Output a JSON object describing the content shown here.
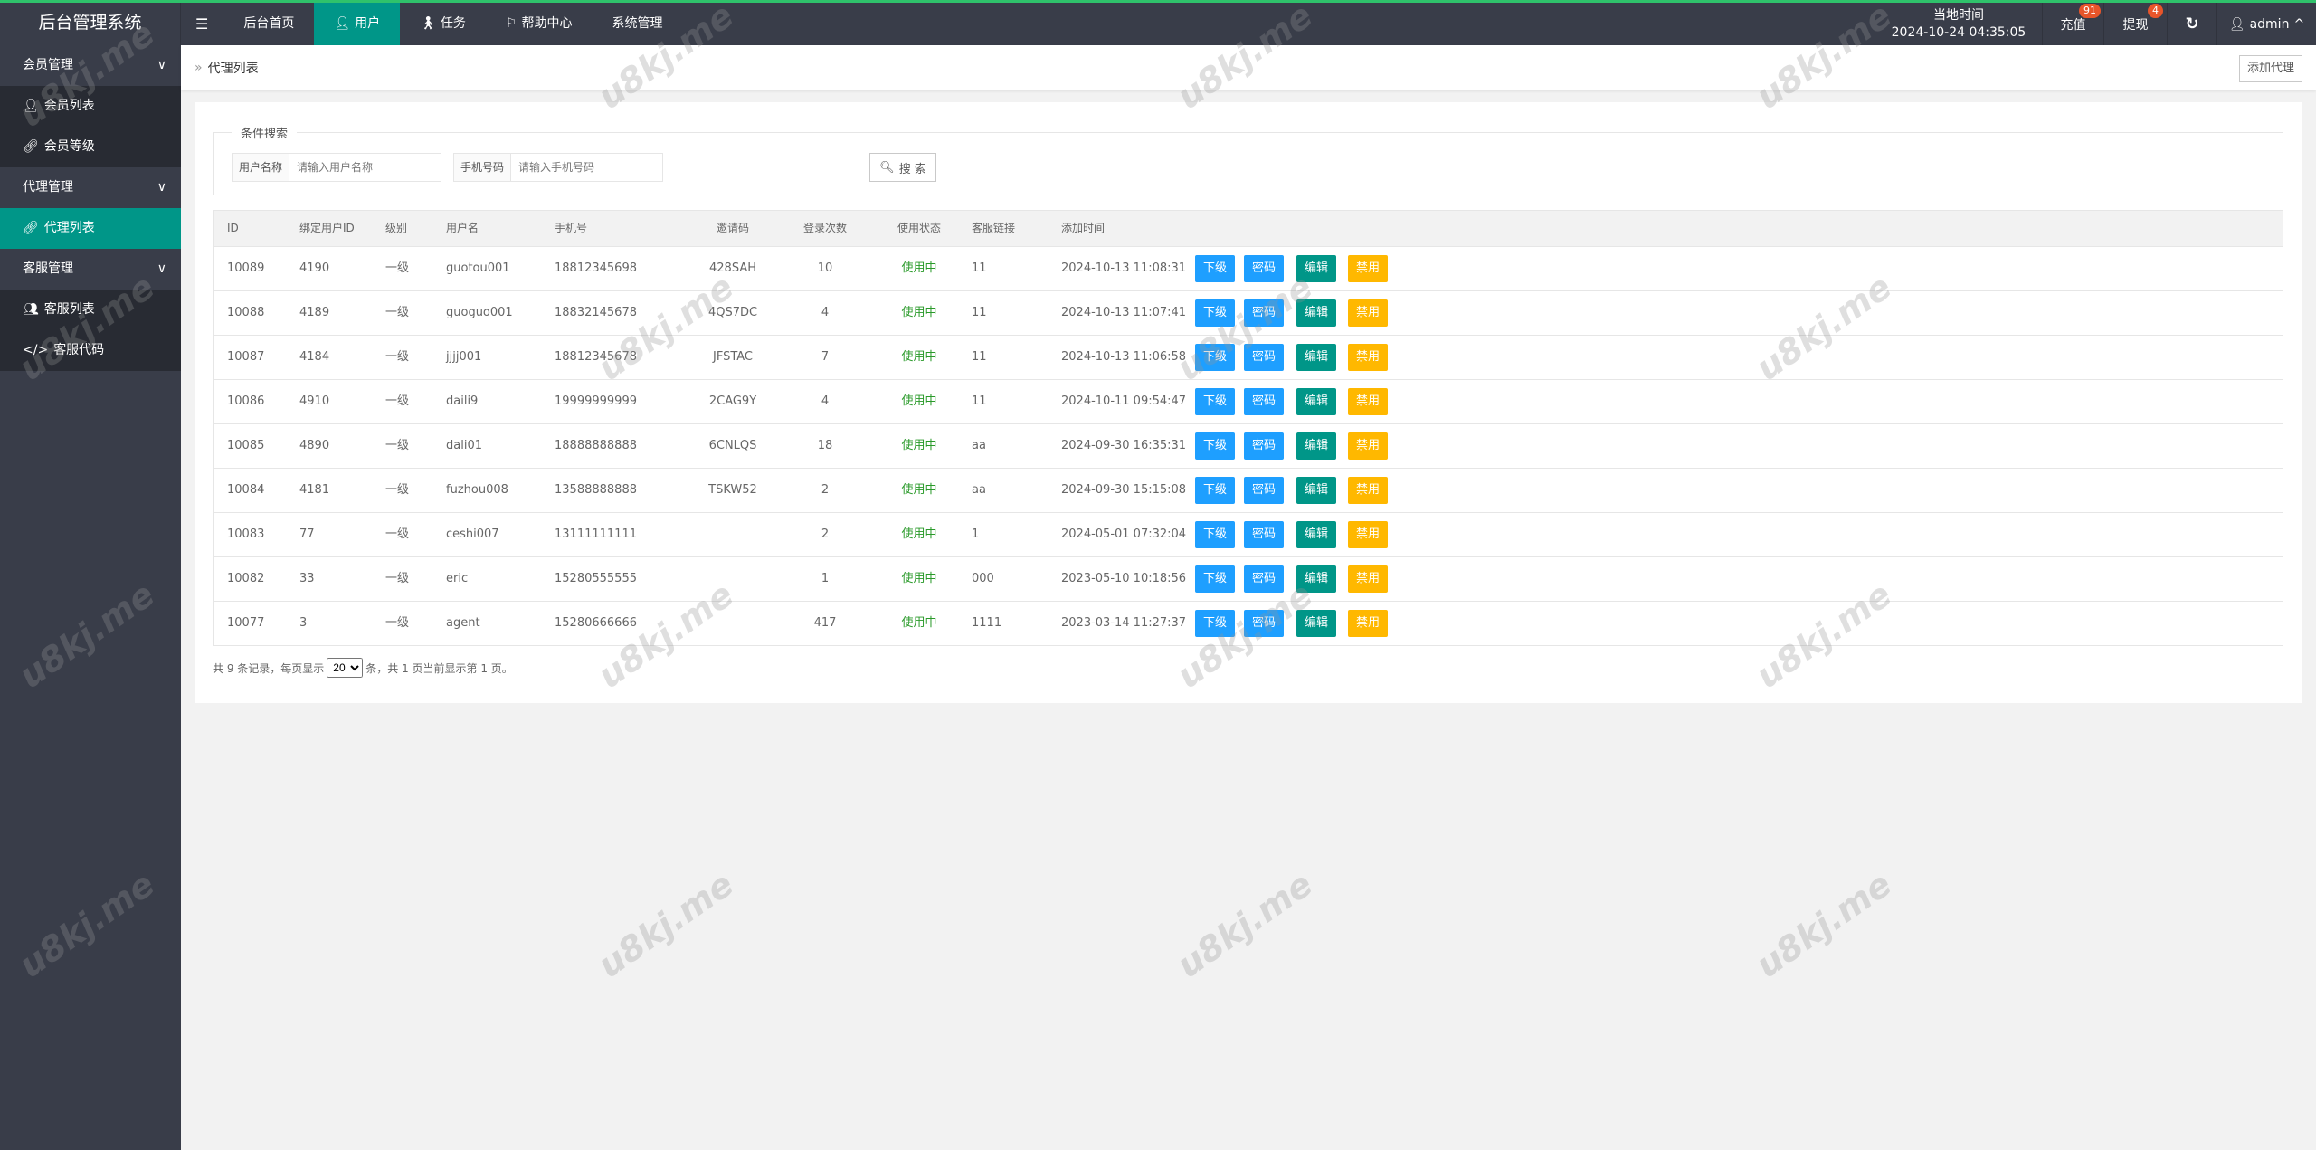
{
  "app": {
    "title": "后台管理系统"
  },
  "nav": {
    "menu_icon": "hamburger-icon",
    "items": [
      {
        "label": "后台首页",
        "icon": ""
      },
      {
        "label": "用户",
        "icon": "user-icon",
        "active": true
      },
      {
        "label": "任务",
        "icon": "walk-icon"
      },
      {
        "label": "帮助中心",
        "icon": "flag-icon"
      },
      {
        "label": "系统管理",
        "icon": ""
      }
    ]
  },
  "header_right": {
    "time_label": "当地时间",
    "time_value": "2024-10-24 04:35:05",
    "recharge": "充值",
    "recharge_badge": "91",
    "withdraw": "提现",
    "withdraw_badge": "4",
    "user": "admin"
  },
  "sidebar": {
    "groups": [
      {
        "label": "会员管理",
        "items": [
          {
            "label": "会员列表"
          },
          {
            "label": "会员等级"
          }
        ]
      },
      {
        "label": "代理管理",
        "items": [
          {
            "label": "代理列表",
            "active": true
          }
        ]
      },
      {
        "label": "客服管理",
        "items": [
          {
            "label": "客服列表"
          },
          {
            "label": "客服代码"
          }
        ]
      }
    ]
  },
  "breadcrumb": {
    "current": "代理列表",
    "add_button": "添加代理"
  },
  "search": {
    "legend": "条件搜索",
    "username_label": "用户名称",
    "username_placeholder": "请输入用户名称",
    "username_value": "",
    "phone_label": "手机号码",
    "phone_placeholder": "请输入手机号码",
    "phone_value": "",
    "button": "搜 索"
  },
  "table": {
    "columns": [
      "ID",
      "绑定用户ID",
      "级别",
      "用户名",
      "手机号",
      "邀请码",
      "登录次数",
      "使用状态",
      "客服链接",
      "添加时间"
    ],
    "actions": [
      "下级",
      "密码",
      "编辑",
      "禁用"
    ],
    "rows": [
      [
        "10089",
        "4190",
        "一级",
        "guotou001",
        "18812345698",
        "428SAH",
        "10",
        "使用中",
        "11",
        "2024-10-13 11:08:31"
      ],
      [
        "10088",
        "4189",
        "一级",
        "guoguo001",
        "18832145678",
        "4QS7DC",
        "4",
        "使用中",
        "11",
        "2024-10-13 11:07:41"
      ],
      [
        "10087",
        "4184",
        "一级",
        "jjjj001",
        "18812345678",
        "JFSTAC",
        "7",
        "使用中",
        "11",
        "2024-10-13 11:06:58"
      ],
      [
        "10086",
        "4910",
        "一级",
        "daili9",
        "19999999999",
        "2CAG9Y",
        "4",
        "使用中",
        "11",
        "2024-10-11 09:54:47"
      ],
      [
        "10085",
        "4890",
        "一级",
        "dali01",
        "18888888888",
        "6CNLQS",
        "18",
        "使用中",
        "aa",
        "2024-09-30 16:35:31"
      ],
      [
        "10084",
        "4181",
        "一级",
        "fuzhou008",
        "13588888888",
        "TSKW52",
        "2",
        "使用中",
        "aa",
        "2024-09-30 15:15:08"
      ],
      [
        "10083",
        "77",
        "一级",
        "ceshi007",
        "13111111111",
        "",
        "2",
        "使用中",
        "1",
        "2024-05-01 07:32:04"
      ],
      [
        "10082",
        "33",
        "一级",
        "eric",
        "15280555555",
        "",
        "1",
        "使用中",
        "000",
        "2023-05-10 10:18:56"
      ],
      [
        "10077",
        "3",
        "一级",
        "agent",
        "15280666666",
        "",
        "417",
        "使用中",
        "1111",
        "2023-03-14 11:27:37"
      ]
    ]
  },
  "pagination": {
    "prefix": "共 9 条记录，每页显示",
    "page_size": "20",
    "suffix": "条，共 1 页当前显示第 1 页。"
  },
  "colors": {
    "topbar": "#393D49",
    "accent": "#009688",
    "blue": "#1E9FFF",
    "yellow": "#FFB800",
    "status_green": "#2a9a2a"
  },
  "watermark": "u8kj.me"
}
